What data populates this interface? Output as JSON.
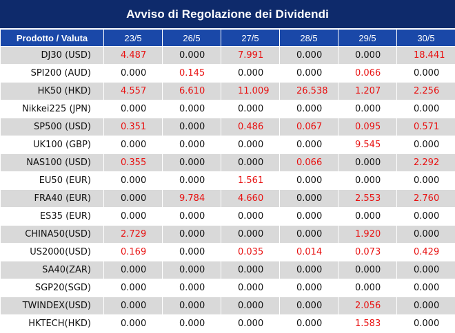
{
  "title": "Avviso di Regolazione dei Dividendi",
  "header": {
    "product_label": "Prodotto / Valuta",
    "dates": [
      "23/5",
      "26/5",
      "27/5",
      "28/5",
      "29/5",
      "30/5"
    ]
  },
  "colors": {
    "title_bg": "#0e2a6b",
    "header_bg": "#1a48a8",
    "stripe": "#d9d9d9",
    "highlight": "#e81111"
  },
  "rows": [
    {
      "product": "DJ30 (USD)",
      "values": [
        "4.487",
        "0.000",
        "7.991",
        "0.000",
        "0.000",
        "18.441"
      ]
    },
    {
      "product": "SPI200 (AUD)",
      "values": [
        "0.000",
        "0.145",
        "0.000",
        "0.000",
        "0.066",
        "0.000"
      ]
    },
    {
      "product": "HK50 (HKD)",
      "values": [
        "4.557",
        "6.610",
        "11.009",
        "26.538",
        "1.207",
        "2.256"
      ]
    },
    {
      "product": "Nikkei225 (JPN)",
      "values": [
        "0.000",
        "0.000",
        "0.000",
        "0.000",
        "0.000",
        "0.000"
      ]
    },
    {
      "product": "SP500 (USD)",
      "values": [
        "0.351",
        "0.000",
        "0.486",
        "0.067",
        "0.095",
        "0.571"
      ]
    },
    {
      "product": "UK100 (GBP)",
      "values": [
        "0.000",
        "0.000",
        "0.000",
        "0.000",
        "9.545",
        "0.000"
      ]
    },
    {
      "product": "NAS100 (USD)",
      "values": [
        "0.355",
        "0.000",
        "0.000",
        "0.066",
        "0.000",
        "2.292"
      ]
    },
    {
      "product": "EU50 (EUR)",
      "values": [
        "0.000",
        "0.000",
        "1.561",
        "0.000",
        "0.000",
        "0.000"
      ]
    },
    {
      "product": "FRA40 (EUR)",
      "values": [
        "0.000",
        "9.784",
        "4.660",
        "0.000",
        "2.553",
        "2.760"
      ]
    },
    {
      "product": "ES35 (EUR)",
      "values": [
        "0.000",
        "0.000",
        "0.000",
        "0.000",
        "0.000",
        "0.000"
      ]
    },
    {
      "product": "CHINA50(USD)",
      "values": [
        "2.729",
        "0.000",
        "0.000",
        "0.000",
        "1.920",
        "0.000"
      ]
    },
    {
      "product": "US2000(USD)",
      "values": [
        "0.169",
        "0.000",
        "0.035",
        "0.014",
        "0.073",
        "0.429"
      ]
    },
    {
      "product": "SA40(ZAR)",
      "values": [
        "0.000",
        "0.000",
        "0.000",
        "0.000",
        "0.000",
        "0.000"
      ]
    },
    {
      "product": "SGP20(SGD)",
      "values": [
        "0.000",
        "0.000",
        "0.000",
        "0.000",
        "0.000",
        "0.000"
      ]
    },
    {
      "product": "TWINDEX(USD)",
      "values": [
        "0.000",
        "0.000",
        "0.000",
        "0.000",
        "2.056",
        "0.000"
      ]
    },
    {
      "product": "HKTECH(HKD)",
      "values": [
        "0.000",
        "0.000",
        "0.000",
        "0.000",
        "1.583",
        "0.000"
      ]
    }
  ]
}
